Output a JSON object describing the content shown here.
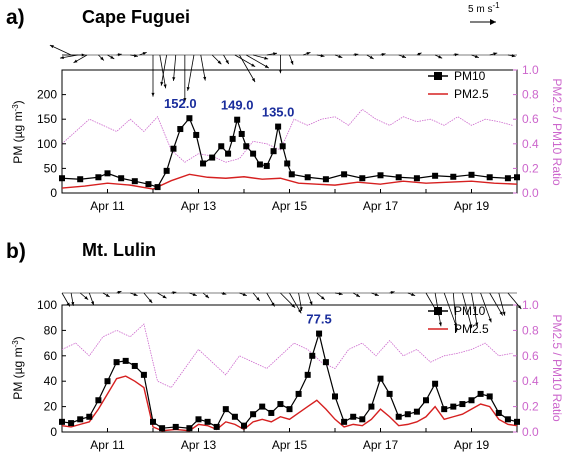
{
  "colors": {
    "pm10": "#000000",
    "pm25": "#d62020",
    "ratio": "#cc66cc",
    "annotation": "#1a2d9c",
    "wind": "#000000"
  },
  "wind_scale": {
    "label": "5 m s",
    "sup": "-1"
  },
  "chart_data": [
    {
      "type": "line",
      "panel_label": "a)",
      "station": "Cape Fuguei",
      "x_unit": "days (April)",
      "xlim": [
        10.0,
        20.0
      ],
      "xticks": [
        11,
        13,
        15,
        17,
        19
      ],
      "xtick_labels": [
        "Apr 11",
        "Apr 13",
        "Apr 15",
        "Apr 17",
        "Apr 19"
      ],
      "ylim": [
        0,
        250
      ],
      "yticks": [
        0,
        50,
        100,
        150,
        200
      ],
      "ylabel": "PM (µg m",
      "ylabel_sup": "-3",
      "ylabel_close": ")",
      "y2lim": [
        0.0,
        1.0
      ],
      "y2ticks": [
        0.0,
        0.2,
        0.4,
        0.6,
        0.8,
        1.0
      ],
      "y2tick_labels": [
        "0.0",
        "0.2",
        "0.4",
        "0.6",
        "0.8",
        "1.0"
      ],
      "y2label": "PM2.5 / PM10 Ratio",
      "legend": {
        "pm10": "PM10",
        "pm25": "PM2.5"
      },
      "annotations": [
        {
          "text": "152.0",
          "x": 12.6,
          "y": 152
        },
        {
          "text": "149.0",
          "x": 13.85,
          "y": 149
        },
        {
          "text": "135.0",
          "x": 14.75,
          "y": 135
        }
      ],
      "series": [
        {
          "name": "PM10",
          "axis": "left",
          "x": [
            10.0,
            10.4,
            10.8,
            11.0,
            11.3,
            11.6,
            11.9,
            12.1,
            12.3,
            12.45,
            12.6,
            12.8,
            12.95,
            13.1,
            13.3,
            13.5,
            13.65,
            13.75,
            13.85,
            13.95,
            14.05,
            14.2,
            14.35,
            14.5,
            14.65,
            14.75,
            14.85,
            14.95,
            15.05,
            15.4,
            15.8,
            16.2,
            16.6,
            17.0,
            17.4,
            17.8,
            18.2,
            18.6,
            19.0,
            19.4,
            19.8,
            20.0
          ],
          "values": [
            30,
            28,
            32,
            40,
            30,
            24,
            18,
            12,
            45,
            90,
            130,
            152,
            118,
            60,
            72,
            95,
            80,
            110,
            149,
            120,
            95,
            80,
            58,
            55,
            85,
            135,
            95,
            60,
            38,
            32,
            28,
            38,
            30,
            36,
            32,
            30,
            35,
            33,
            37,
            32,
            30,
            32
          ]
        },
        {
          "name": "PM2.5",
          "axis": "left",
          "x": [
            10.0,
            10.5,
            11.0,
            11.5,
            12.0,
            12.4,
            12.8,
            13.2,
            13.6,
            14.0,
            14.4,
            14.8,
            15.2,
            15.6,
            16.0,
            16.5,
            17.0,
            17.5,
            18.0,
            18.5,
            19.0,
            19.5,
            20.0
          ],
          "values": [
            10,
            14,
            20,
            16,
            8,
            25,
            38,
            32,
            30,
            33,
            28,
            30,
            20,
            18,
            16,
            22,
            18,
            24,
            20,
            22,
            24,
            20,
            18
          ]
        },
        {
          "name": "PM2.5 / PM10 Ratio",
          "axis": "right",
          "x": [
            10.0,
            10.3,
            10.6,
            10.9,
            11.2,
            11.5,
            11.8,
            12.1,
            12.4,
            12.7,
            13.0,
            13.3,
            13.6,
            13.9,
            14.2,
            14.5,
            14.8,
            15.1,
            15.4,
            15.7,
            16.0,
            16.3,
            16.6,
            16.9,
            17.2,
            17.5,
            17.8,
            18.1,
            18.4,
            18.7,
            19.0,
            19.3,
            19.6,
            19.9
          ],
          "values": [
            0.4,
            0.5,
            0.6,
            0.55,
            0.5,
            0.6,
            0.5,
            0.62,
            0.35,
            0.25,
            0.32,
            0.3,
            0.25,
            0.28,
            0.42,
            0.4,
            0.35,
            0.6,
            0.55,
            0.6,
            0.62,
            0.55,
            0.68,
            0.6,
            0.55,
            0.62,
            0.58,
            0.6,
            0.55,
            0.62,
            0.55,
            0.6,
            0.58,
            0.55
          ]
        }
      ],
      "wind": [
        [
          10,
          0,
          0.9
        ],
        [
          10.2,
          155,
          0.9
        ],
        [
          10.35,
          -170,
          0.7
        ],
        [
          10.55,
          -150,
          0.6
        ],
        [
          10.8,
          -45,
          0.3
        ],
        [
          11.0,
          -30,
          0.3
        ],
        [
          11.2,
          10,
          0.2
        ],
        [
          11.5,
          -10,
          0.3
        ],
        [
          11.7,
          20,
          0.3
        ],
        [
          12.0,
          -90,
          1.6
        ],
        [
          12.15,
          -80,
          1.3
        ],
        [
          12.3,
          -100,
          1.2
        ],
        [
          12.5,
          -95,
          1.0
        ],
        [
          12.7,
          -90,
          1.8
        ],
        [
          12.9,
          -100,
          1.4
        ],
        [
          13.05,
          -80,
          1.0
        ],
        [
          13.3,
          -45,
          0.5
        ],
        [
          13.55,
          -60,
          0.4
        ],
        [
          13.8,
          -30,
          0.9
        ],
        [
          13.9,
          -60,
          1.2
        ],
        [
          14.05,
          -30,
          1.0
        ],
        [
          14.2,
          -15,
          0.6
        ],
        [
          14.5,
          10,
          0.4
        ],
        [
          14.8,
          -90,
          0.7
        ],
        [
          15.0,
          -70,
          0.4
        ],
        [
          15.3,
          20,
          0.3
        ],
        [
          15.6,
          -10,
          0.3
        ],
        [
          16.0,
          -20,
          0.3
        ],
        [
          16.4,
          10,
          0.2
        ],
        [
          16.7,
          -30,
          0.3
        ],
        [
          17.0,
          15,
          0.2
        ],
        [
          17.4,
          -20,
          0.3
        ],
        [
          17.8,
          25,
          0.2
        ],
        [
          18.2,
          -25,
          0.3
        ],
        [
          18.6,
          10,
          0.2
        ],
        [
          19.0,
          -20,
          0.3
        ],
        [
          19.4,
          15,
          0.3
        ],
        [
          19.8,
          -10,
          0.3
        ]
      ]
    },
    {
      "type": "line",
      "panel_label": "b)",
      "station": "Mt. Lulin",
      "x_unit": "days (April)",
      "xlim": [
        10.0,
        20.0
      ],
      "xticks": [
        11,
        13,
        15,
        17,
        19
      ],
      "xtick_labels": [
        "Apr 11",
        "Apr 13",
        "Apr 15",
        "Apr 17",
        "Apr 19"
      ],
      "ylim": [
        0,
        100
      ],
      "yticks": [
        0,
        20,
        40,
        60,
        80,
        100
      ],
      "ylabel": "PM (µg m",
      "ylabel_sup": "-3",
      "ylabel_close": ")",
      "y2lim": [
        0.0,
        1.0
      ],
      "y2ticks": [
        0.0,
        0.2,
        0.4,
        0.6,
        0.8,
        1.0
      ],
      "y2tick_labels": [
        "0.0",
        "0.2",
        "0.4",
        "0.6",
        "0.8",
        "1.0"
      ],
      "y2label": "PM2.5 / PM10 Ratio",
      "legend": {
        "pm10": "PM10",
        "pm25": "PM2.5"
      },
      "annotations": [
        {
          "text": "77.5",
          "x": 15.65,
          "y": 77.5
        }
      ],
      "series": [
        {
          "name": "PM10",
          "axis": "left",
          "x": [
            10.0,
            10.2,
            10.4,
            10.6,
            10.8,
            11.0,
            11.2,
            11.4,
            11.6,
            11.8,
            12.0,
            12.2,
            12.5,
            12.8,
            13.0,
            13.2,
            13.4,
            13.6,
            13.8,
            14.0,
            14.2,
            14.4,
            14.6,
            14.8,
            15.0,
            15.2,
            15.4,
            15.5,
            15.65,
            15.8,
            16.0,
            16.2,
            16.4,
            16.6,
            16.8,
            17.0,
            17.2,
            17.4,
            17.6,
            17.8,
            18.0,
            18.2,
            18.4,
            18.6,
            18.8,
            19.0,
            19.2,
            19.4,
            19.6,
            19.8,
            20.0
          ],
          "values": [
            8,
            7,
            10,
            12,
            25,
            40,
            55,
            56,
            52,
            45,
            8,
            3,
            4,
            3,
            10,
            8,
            4,
            18,
            12,
            5,
            14,
            20,
            15,
            22,
            18,
            30,
            45,
            60,
            77.5,
            55,
            28,
            8,
            12,
            10,
            20,
            42,
            30,
            12,
            14,
            16,
            25,
            38,
            18,
            20,
            22,
            25,
            30,
            28,
            15,
            10,
            8
          ]
        },
        {
          "name": "PM2.5",
          "axis": "left",
          "x": [
            10.0,
            10.2,
            10.4,
            10.6,
            10.8,
            11.0,
            11.2,
            11.4,
            11.6,
            11.8,
            12.0,
            12.2,
            12.5,
            12.8,
            13.0,
            13.2,
            13.4,
            13.6,
            13.8,
            14.0,
            14.2,
            14.4,
            14.6,
            14.8,
            15.0,
            15.2,
            15.4,
            15.6,
            15.8,
            16.0,
            16.2,
            16.4,
            16.6,
            16.8,
            17.0,
            17.2,
            17.4,
            17.6,
            17.8,
            18.0,
            18.2,
            18.4,
            18.6,
            18.8,
            19.0,
            19.2,
            19.4,
            19.6,
            19.8,
            20.0
          ],
          "values": [
            5,
            4,
            6,
            8,
            18,
            30,
            42,
            44,
            40,
            35,
            4,
            1,
            2,
            1,
            6,
            5,
            2,
            8,
            6,
            2,
            8,
            10,
            8,
            12,
            10,
            15,
            20,
            25,
            18,
            10,
            4,
            6,
            5,
            10,
            18,
            12,
            5,
            6,
            8,
            12,
            20,
            10,
            12,
            14,
            18,
            22,
            20,
            10,
            6,
            5
          ]
        },
        {
          "name": "PM2.5 / PM10 Ratio",
          "axis": "right",
          "x": [
            10.0,
            10.3,
            10.6,
            10.9,
            11.2,
            11.5,
            11.8,
            12.1,
            12.4,
            12.7,
            13.0,
            13.3,
            13.6,
            13.9,
            14.2,
            14.5,
            14.8,
            15.1,
            15.4,
            15.7,
            16.0,
            16.3,
            16.6,
            16.9,
            17.2,
            17.5,
            17.8,
            18.1,
            18.4,
            18.7,
            19.0,
            19.3,
            19.6,
            19.9
          ],
          "values": [
            0.65,
            0.7,
            0.6,
            0.75,
            0.8,
            0.75,
            0.85,
            0.4,
            0.35,
            0.5,
            0.65,
            0.55,
            0.45,
            0.6,
            0.55,
            0.5,
            0.6,
            0.7,
            0.65,
            0.55,
            0.5,
            0.65,
            0.7,
            0.6,
            0.72,
            0.6,
            0.65,
            0.55,
            0.6,
            0.62,
            0.65,
            0.7,
            0.6,
            0.62
          ]
        }
      ],
      "wind": [
        [
          10.0,
          -60,
          0.6
        ],
        [
          10.2,
          -80,
          0.5
        ],
        [
          10.4,
          -40,
          0.4
        ],
        [
          10.6,
          -70,
          0.5
        ],
        [
          10.9,
          -30,
          0.3
        ],
        [
          11.2,
          20,
          0.2
        ],
        [
          11.5,
          -20,
          0.3
        ],
        [
          11.8,
          -50,
          0.5
        ],
        [
          12.1,
          -30,
          0.4
        ],
        [
          12.4,
          10,
          0.2
        ],
        [
          12.8,
          -20,
          0.3
        ],
        [
          13.1,
          -40,
          0.3
        ],
        [
          13.5,
          -15,
          0.2
        ],
        [
          13.9,
          -20,
          0.3
        ],
        [
          14.2,
          -50,
          0.4
        ],
        [
          14.5,
          -60,
          0.6
        ],
        [
          14.8,
          -45,
          0.8
        ],
        [
          15.0,
          -60,
          0.9
        ],
        [
          15.2,
          -80,
          0.7
        ],
        [
          15.4,
          -70,
          0.5
        ],
        [
          15.6,
          -40,
          0.4
        ],
        [
          16.0,
          -10,
          0.3
        ],
        [
          16.4,
          -30,
          0.3
        ],
        [
          16.8,
          -20,
          0.3
        ],
        [
          17.2,
          15,
          0.2
        ],
        [
          17.6,
          -20,
          0.3
        ],
        [
          18.0,
          -60,
          1.0
        ],
        [
          18.2,
          -80,
          1.3
        ],
        [
          18.4,
          -70,
          1.4
        ],
        [
          18.6,
          -85,
          1.5
        ],
        [
          18.8,
          -75,
          1.4
        ],
        [
          19.0,
          -80,
          1.3
        ],
        [
          19.2,
          -70,
          1.2
        ],
        [
          19.4,
          -60,
          1.0
        ],
        [
          19.6,
          -75,
          0.9
        ],
        [
          19.8,
          -50,
          0.8
        ]
      ]
    }
  ]
}
